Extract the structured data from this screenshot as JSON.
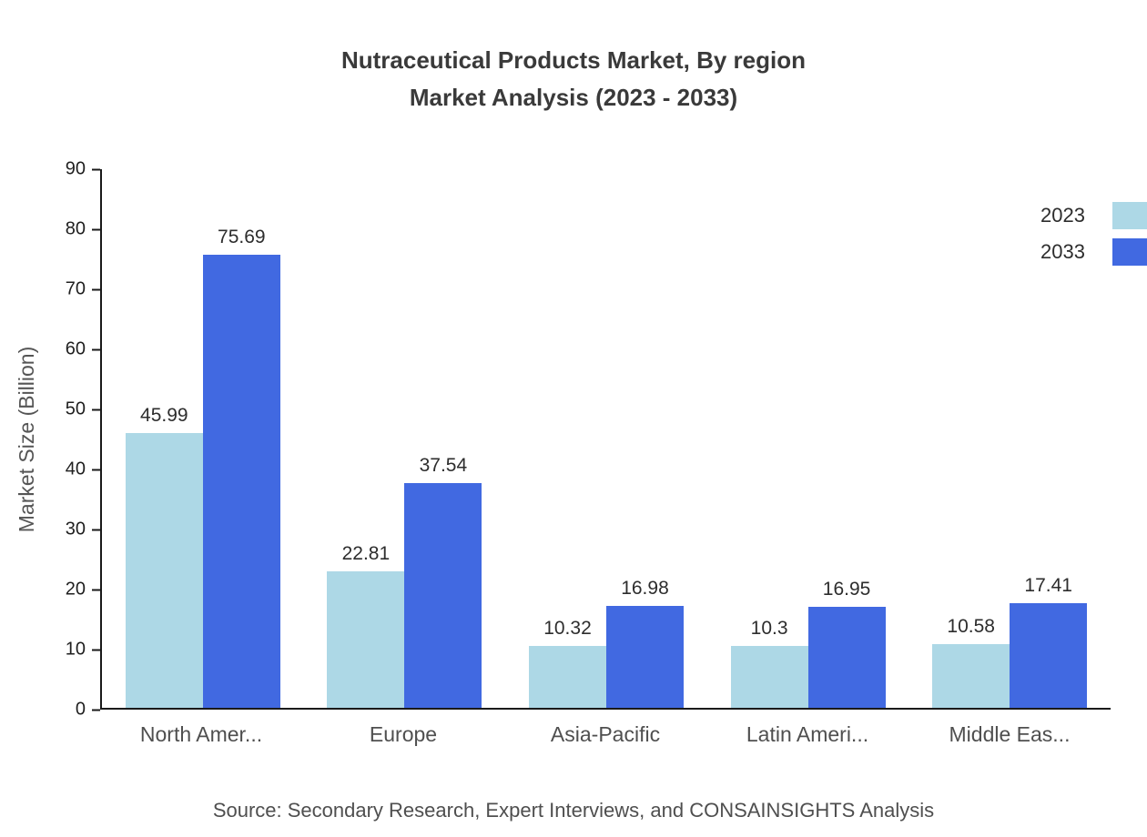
{
  "chart_data": {
    "type": "bar",
    "title": "Nutraceutical Products Market, By region",
    "subtitle": "Market Analysis (2023 - 2033)",
    "categories": [
      "North Amer...",
      "Europe",
      "Asia-Pacific",
      "Latin Ameri...",
      "Middle Eas..."
    ],
    "series": [
      {
        "name": "2023",
        "color": "#add8e6",
        "values": [
          45.99,
          22.81,
          10.32,
          10.3,
          10.58
        ]
      },
      {
        "name": "2033",
        "color": "#4169e1",
        "values": [
          75.69,
          37.54,
          16.98,
          16.95,
          17.41
        ]
      }
    ],
    "xlabel": "",
    "ylabel": "Market Size (Billion)",
    "ylim": [
      0,
      90
    ],
    "ytick_interval": 10,
    "grid": false,
    "legend_position": "top-right",
    "value_labels": true
  },
  "footer": {
    "source": "Source: Secondary Research, Expert Interviews, and CONSAINSIGHTS Analysis"
  }
}
